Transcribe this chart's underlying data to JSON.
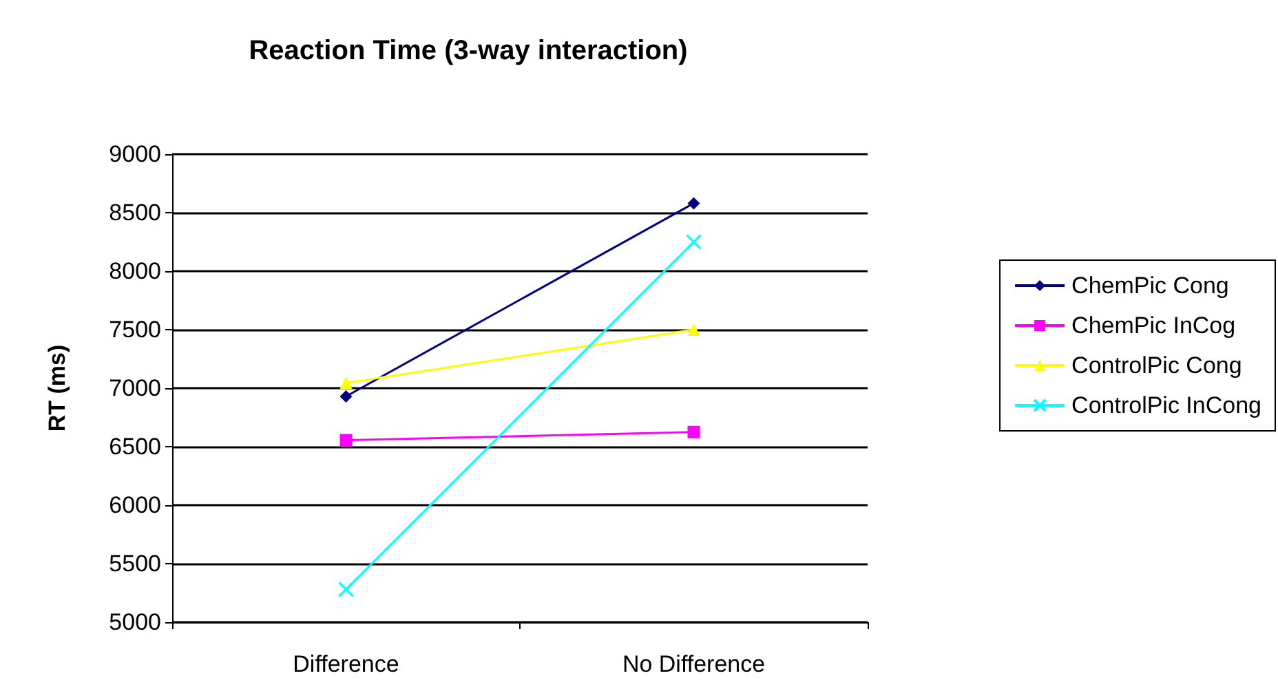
{
  "chart_data": {
    "type": "line",
    "title": "Reaction Time (3-way interaction)",
    "ylabel": "RT (ms)",
    "categories": [
      "Difference",
      "No Difference"
    ],
    "series": [
      {
        "name": "ChemPic Cong",
        "color": "#000080",
        "values": [
          6930,
          8580
        ],
        "marker": "diamond"
      },
      {
        "name": "ChemPic InCog",
        "color": "#ff00ff",
        "values": [
          6555,
          6625
        ],
        "marker": "square"
      },
      {
        "name": "ControlPic Cong",
        "color": "#ffff00",
        "values": [
          7045,
          7500
        ],
        "marker": "triangle"
      },
      {
        "name": "ControlPic InCong",
        "color": "#00ffff",
        "values": [
          5280,
          8250
        ],
        "marker": "cross"
      }
    ],
    "ylim": [
      5000,
      9000
    ],
    "yticks": [
      5000,
      5500,
      6000,
      6500,
      7000,
      7500,
      8000,
      8500,
      9000
    ],
    "grid": "y",
    "legend": "right"
  }
}
